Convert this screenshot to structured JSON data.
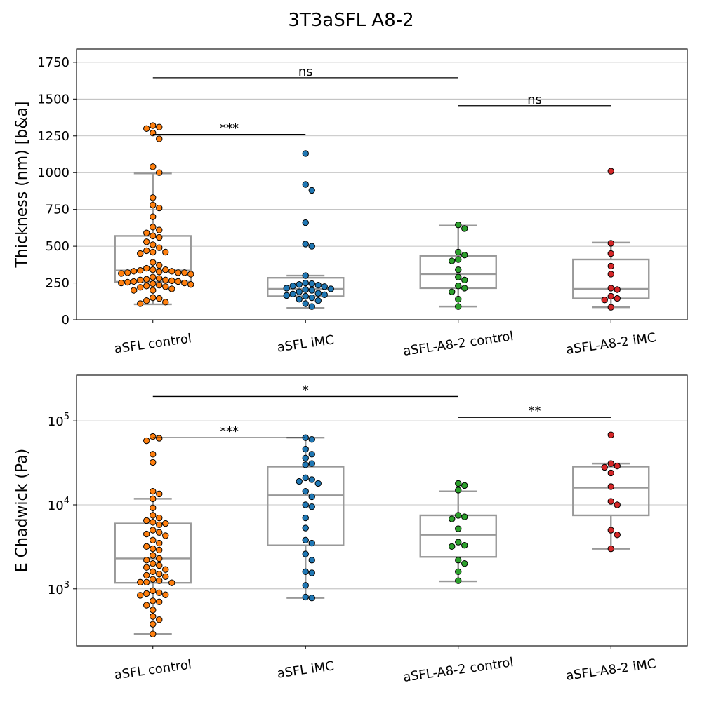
{
  "figure": {
    "title": "3T3aSFL A8-2"
  },
  "chart_data": [
    {
      "type": "box-swarm",
      "ylabel": "Thickness (nm) [b&a]",
      "yscale": "linear",
      "ylim": [
        0,
        1840
      ],
      "yticks": [
        0,
        250,
        500,
        750,
        1000,
        1250,
        1500,
        1750
      ],
      "grid": "horizontal",
      "categories": [
        "aSFL control",
        "aSFL iMC",
        "aSFL-A8-2 control",
        "aSFL-A8-2 iMC"
      ],
      "colors": [
        "#ff7f0e",
        "#1f77b4",
        "#2ca02c",
        "#d62728"
      ],
      "boxes": [
        {
          "whisker_low": 105,
          "q1": 258,
          "median": 335,
          "q3": 570,
          "whisker_high": 995
        },
        {
          "whisker_low": 80,
          "q1": 160,
          "median": 210,
          "q3": 285,
          "whisker_high": 300
        },
        {
          "whisker_low": 90,
          "q1": 215,
          "median": 310,
          "q3": 435,
          "whisker_high": 640
        },
        {
          "whisker_low": 85,
          "q1": 145,
          "median": 210,
          "q3": 410,
          "whisker_high": 525
        }
      ],
      "points": [
        [
          1320,
          1310,
          1300,
          1270,
          1230,
          1040,
          1000,
          830,
          780,
          760,
          700,
          630,
          610,
          590,
          570,
          560,
          530,
          510,
          490,
          470,
          460,
          460,
          450,
          390,
          370,
          350,
          340,
          340,
          335,
          330,
          330,
          325,
          320,
          320,
          320,
          315,
          310,
          290,
          280,
          275,
          270,
          270,
          265,
          260,
          260,
          255,
          250,
          250,
          245,
          240,
          235,
          230,
          225,
          220,
          210,
          200,
          200,
          150,
          145,
          130,
          120,
          110
        ],
        [
          1130,
          920,
          880,
          660,
          515,
          500,
          300,
          250,
          245,
          240,
          235,
          230,
          225,
          215,
          210,
          205,
          200,
          190,
          180,
          175,
          170,
          165,
          160,
          150,
          140,
          130,
          110,
          90
        ],
        [
          645,
          620,
          460,
          440,
          410,
          400,
          340,
          290,
          270,
          230,
          215,
          190,
          140,
          90
        ],
        [
          1010,
          520,
          450,
          365,
          310,
          215,
          205,
          160,
          145,
          135,
          85
        ]
      ],
      "annotations": [
        {
          "text": "ns",
          "from": 0,
          "to": 2,
          "y": 1645
        },
        {
          "text": "***",
          "from": 0,
          "to": 1,
          "y": 1260
        },
        {
          "text": "ns",
          "from": 2,
          "to": 3,
          "y": 1455
        }
      ]
    },
    {
      "type": "box-swarm",
      "ylabel": "E Chadwick (Pa)",
      "yscale": "log",
      "ylim": [
        210,
        350000
      ],
      "yticks": [
        1000,
        10000,
        100000
      ],
      "yticklabels": [
        [
          "10",
          "3"
        ],
        [
          "10",
          "4"
        ],
        [
          "10",
          "5"
        ]
      ],
      "grid": "horizontal",
      "categories": [
        "aSFL control",
        "aSFL iMC",
        "aSFL-A8-2 control",
        "aSFL-A8-2 iMC"
      ],
      "colors": [
        "#ff7f0e",
        "#1f77b4",
        "#2ca02c",
        "#d62728"
      ],
      "boxes": [
        {
          "whisker_low": 290,
          "q1": 1180,
          "median": 2300,
          "q3": 6000,
          "whisker_high": 11800
        },
        {
          "whisker_low": 780,
          "q1": 3300,
          "median": 13000,
          "q3": 28500,
          "whisker_high": 63000
        },
        {
          "whisker_low": 1230,
          "q1": 2400,
          "median": 4400,
          "q3": 7500,
          "whisker_high": 14500
        },
        {
          "whisker_low": 3000,
          "q1": 7500,
          "median": 16000,
          "q3": 28500,
          "whisker_high": 31000
        }
      ],
      "points": [
        [
          65000,
          62000,
          58000,
          40000,
          32000,
          14500,
          13500,
          11800,
          9200,
          7500,
          7000,
          6500,
          6200,
          6000,
          5800,
          5000,
          4700,
          4500,
          4300,
          3800,
          3500,
          3200,
          3000,
          2900,
          2500,
          2300,
          2200,
          2000,
          1900,
          1800,
          1700,
          1600,
          1500,
          1450,
          1400,
          1300,
          1250,
          1200,
          1200,
          1180,
          950,
          900,
          880,
          850,
          840,
          720,
          700,
          640,
          560,
          470,
          430,
          380,
          290
        ],
        [
          63000,
          60000,
          46000,
          40000,
          36000,
          31000,
          30000,
          21000,
          20000,
          19000,
          18000,
          14500,
          12500,
          10000,
          9500,
          7000,
          5300,
          3800,
          3500,
          2600,
          2200,
          1600,
          1550,
          1100,
          800,
          780
        ],
        [
          18000,
          17000,
          15000,
          7500,
          7200,
          6800,
          5200,
          3600,
          3300,
          3200,
          2200,
          2000,
          1600,
          1250
        ],
        [
          68000,
          31000,
          29000,
          28000,
          24000,
          16500,
          11000,
          10000,
          5000,
          4400,
          3000
        ]
      ],
      "annotations": [
        {
          "text": "*",
          "from": 0,
          "to": 2,
          "y": 195000
        },
        {
          "text": "***",
          "from": 0,
          "to": 1,
          "y": 63000
        },
        {
          "text": "**",
          "from": 2,
          "to": 3,
          "y": 110000
        }
      ]
    }
  ]
}
